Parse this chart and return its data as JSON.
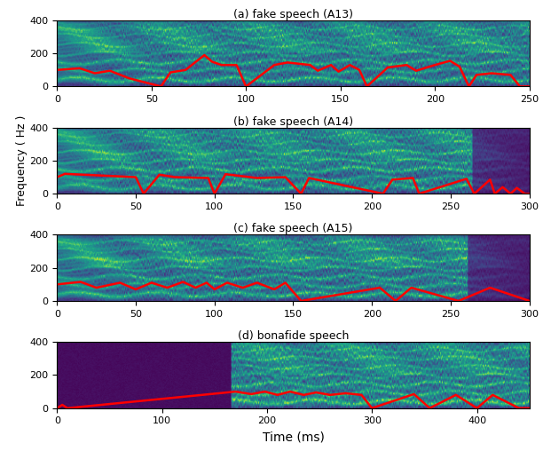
{
  "subplots": [
    {
      "title": "(a) fake speech (A13)",
      "xlim": [
        0,
        250
      ],
      "ylim": [
        0,
        400
      ],
      "xticks": [
        0,
        50,
        100,
        150,
        200,
        250
      ],
      "f0_x": [
        0,
        0,
        12,
        12,
        20,
        20,
        28,
        28,
        38,
        38,
        55,
        55,
        60,
        60,
        68,
        68,
        78,
        78,
        82,
        82,
        87,
        87,
        95,
        95,
        100,
        100,
        115,
        115,
        122,
        122,
        134,
        134,
        138,
        138,
        145,
        145,
        149,
        149,
        155,
        155,
        160,
        160,
        164,
        164,
        175,
        175,
        185,
        185,
        190,
        190,
        200,
        200,
        208,
        208,
        213,
        213,
        218,
        218,
        222,
        222,
        230,
        230,
        240,
        240,
        245,
        245,
        250,
        250
      ],
      "f0_y": [
        100,
        100,
        110,
        110,
        80,
        80,
        95,
        95,
        50,
        50,
        0,
        0,
        85,
        85,
        100,
        100,
        190,
        190,
        150,
        150,
        130,
        130,
        130,
        130,
        0,
        0,
        130,
        130,
        145,
        145,
        130,
        130,
        95,
        95,
        130,
        130,
        90,
        90,
        130,
        130,
        100,
        100,
        0,
        0,
        115,
        115,
        130,
        130,
        95,
        95,
        130,
        130,
        155,
        155,
        120,
        120,
        0,
        0,
        70,
        70,
        80,
        80,
        70,
        70,
        0,
        0,
        0,
        0
      ]
    },
    {
      "title": "(b) fake speech (A14)",
      "xlim": [
        0,
        300
      ],
      "ylim": [
        0,
        400
      ],
      "xticks": [
        0,
        50,
        100,
        150,
        200,
        250,
        300
      ],
      "f0_x": [
        0,
        0,
        5,
        5,
        28,
        28,
        50,
        50,
        55,
        55,
        65,
        65,
        75,
        75,
        96,
        96,
        100,
        100,
        107,
        107,
        127,
        127,
        145,
        145,
        155,
        155,
        160,
        160,
        207,
        207,
        213,
        213,
        226,
        226,
        230,
        230,
        260,
        260,
        265,
        265,
        275,
        275,
        278,
        278,
        283,
        283,
        288,
        288,
        292,
        292,
        297,
        297,
        300
      ],
      "f0_y": [
        100,
        100,
        120,
        120,
        110,
        110,
        100,
        100,
        0,
        0,
        115,
        115,
        100,
        100,
        95,
        95,
        0,
        0,
        118,
        118,
        95,
        95,
        100,
        100,
        0,
        0,
        95,
        95,
        0,
        0,
        85,
        85,
        95,
        95,
        0,
        0,
        90,
        90,
        0,
        0,
        85,
        85,
        0,
        0,
        40,
        40,
        0,
        0,
        35,
        35,
        0,
        0,
        0
      ]
    },
    {
      "title": "(c) fake speech (A15)",
      "xlim": [
        0,
        300
      ],
      "ylim": [
        0,
        400
      ],
      "xticks": [
        0,
        50,
        100,
        150,
        200,
        250,
        300
      ],
      "f0_x": [
        0,
        0,
        15,
        15,
        25,
        25,
        40,
        40,
        50,
        50,
        60,
        60,
        70,
        70,
        80,
        80,
        88,
        88,
        95,
        95,
        100,
        100,
        108,
        108,
        118,
        118,
        127,
        127,
        138,
        138,
        145,
        145,
        155,
        155,
        205,
        205,
        215,
        215,
        225,
        225,
        255,
        255,
        275,
        275,
        300
      ],
      "f0_y": [
        100,
        100,
        115,
        115,
        80,
        80,
        110,
        110,
        70,
        70,
        110,
        110,
        80,
        80,
        115,
        115,
        80,
        80,
        110,
        110,
        70,
        70,
        110,
        110,
        80,
        80,
        110,
        110,
        70,
        70,
        110,
        110,
        0,
        0,
        80,
        80,
        0,
        0,
        80,
        80,
        0,
        0,
        80,
        80,
        0
      ]
    },
    {
      "title": "(d) bonafide speech",
      "xlim": [
        0,
        450
      ],
      "ylim": [
        0,
        400
      ],
      "xticks": [
        0,
        100,
        200,
        300,
        400
      ],
      "f0_x": [
        0,
        0,
        5,
        5,
        10,
        10,
        170,
        170,
        185,
        185,
        198,
        198,
        210,
        210,
        222,
        222,
        235,
        235,
        247,
        247,
        260,
        260,
        275,
        275,
        290,
        290,
        300,
        300,
        340,
        340,
        355,
        355,
        380,
        380,
        400,
        400,
        415,
        415,
        440,
        440,
        450
      ],
      "f0_y": [
        0,
        0,
        20,
        20,
        0,
        0,
        100,
        100,
        85,
        85,
        100,
        100,
        80,
        80,
        100,
        100,
        80,
        80,
        95,
        95,
        80,
        80,
        90,
        90,
        80,
        80,
        0,
        0,
        85,
        85,
        0,
        0,
        80,
        80,
        0,
        0,
        80,
        80,
        0,
        0,
        0
      ]
    }
  ],
  "ylabel": "Frequency ( Hz )",
  "xlabel": "Time (ms)",
  "f0_color": "red",
  "f0_linewidth": 1.8,
  "bg_color": "#ffffff"
}
